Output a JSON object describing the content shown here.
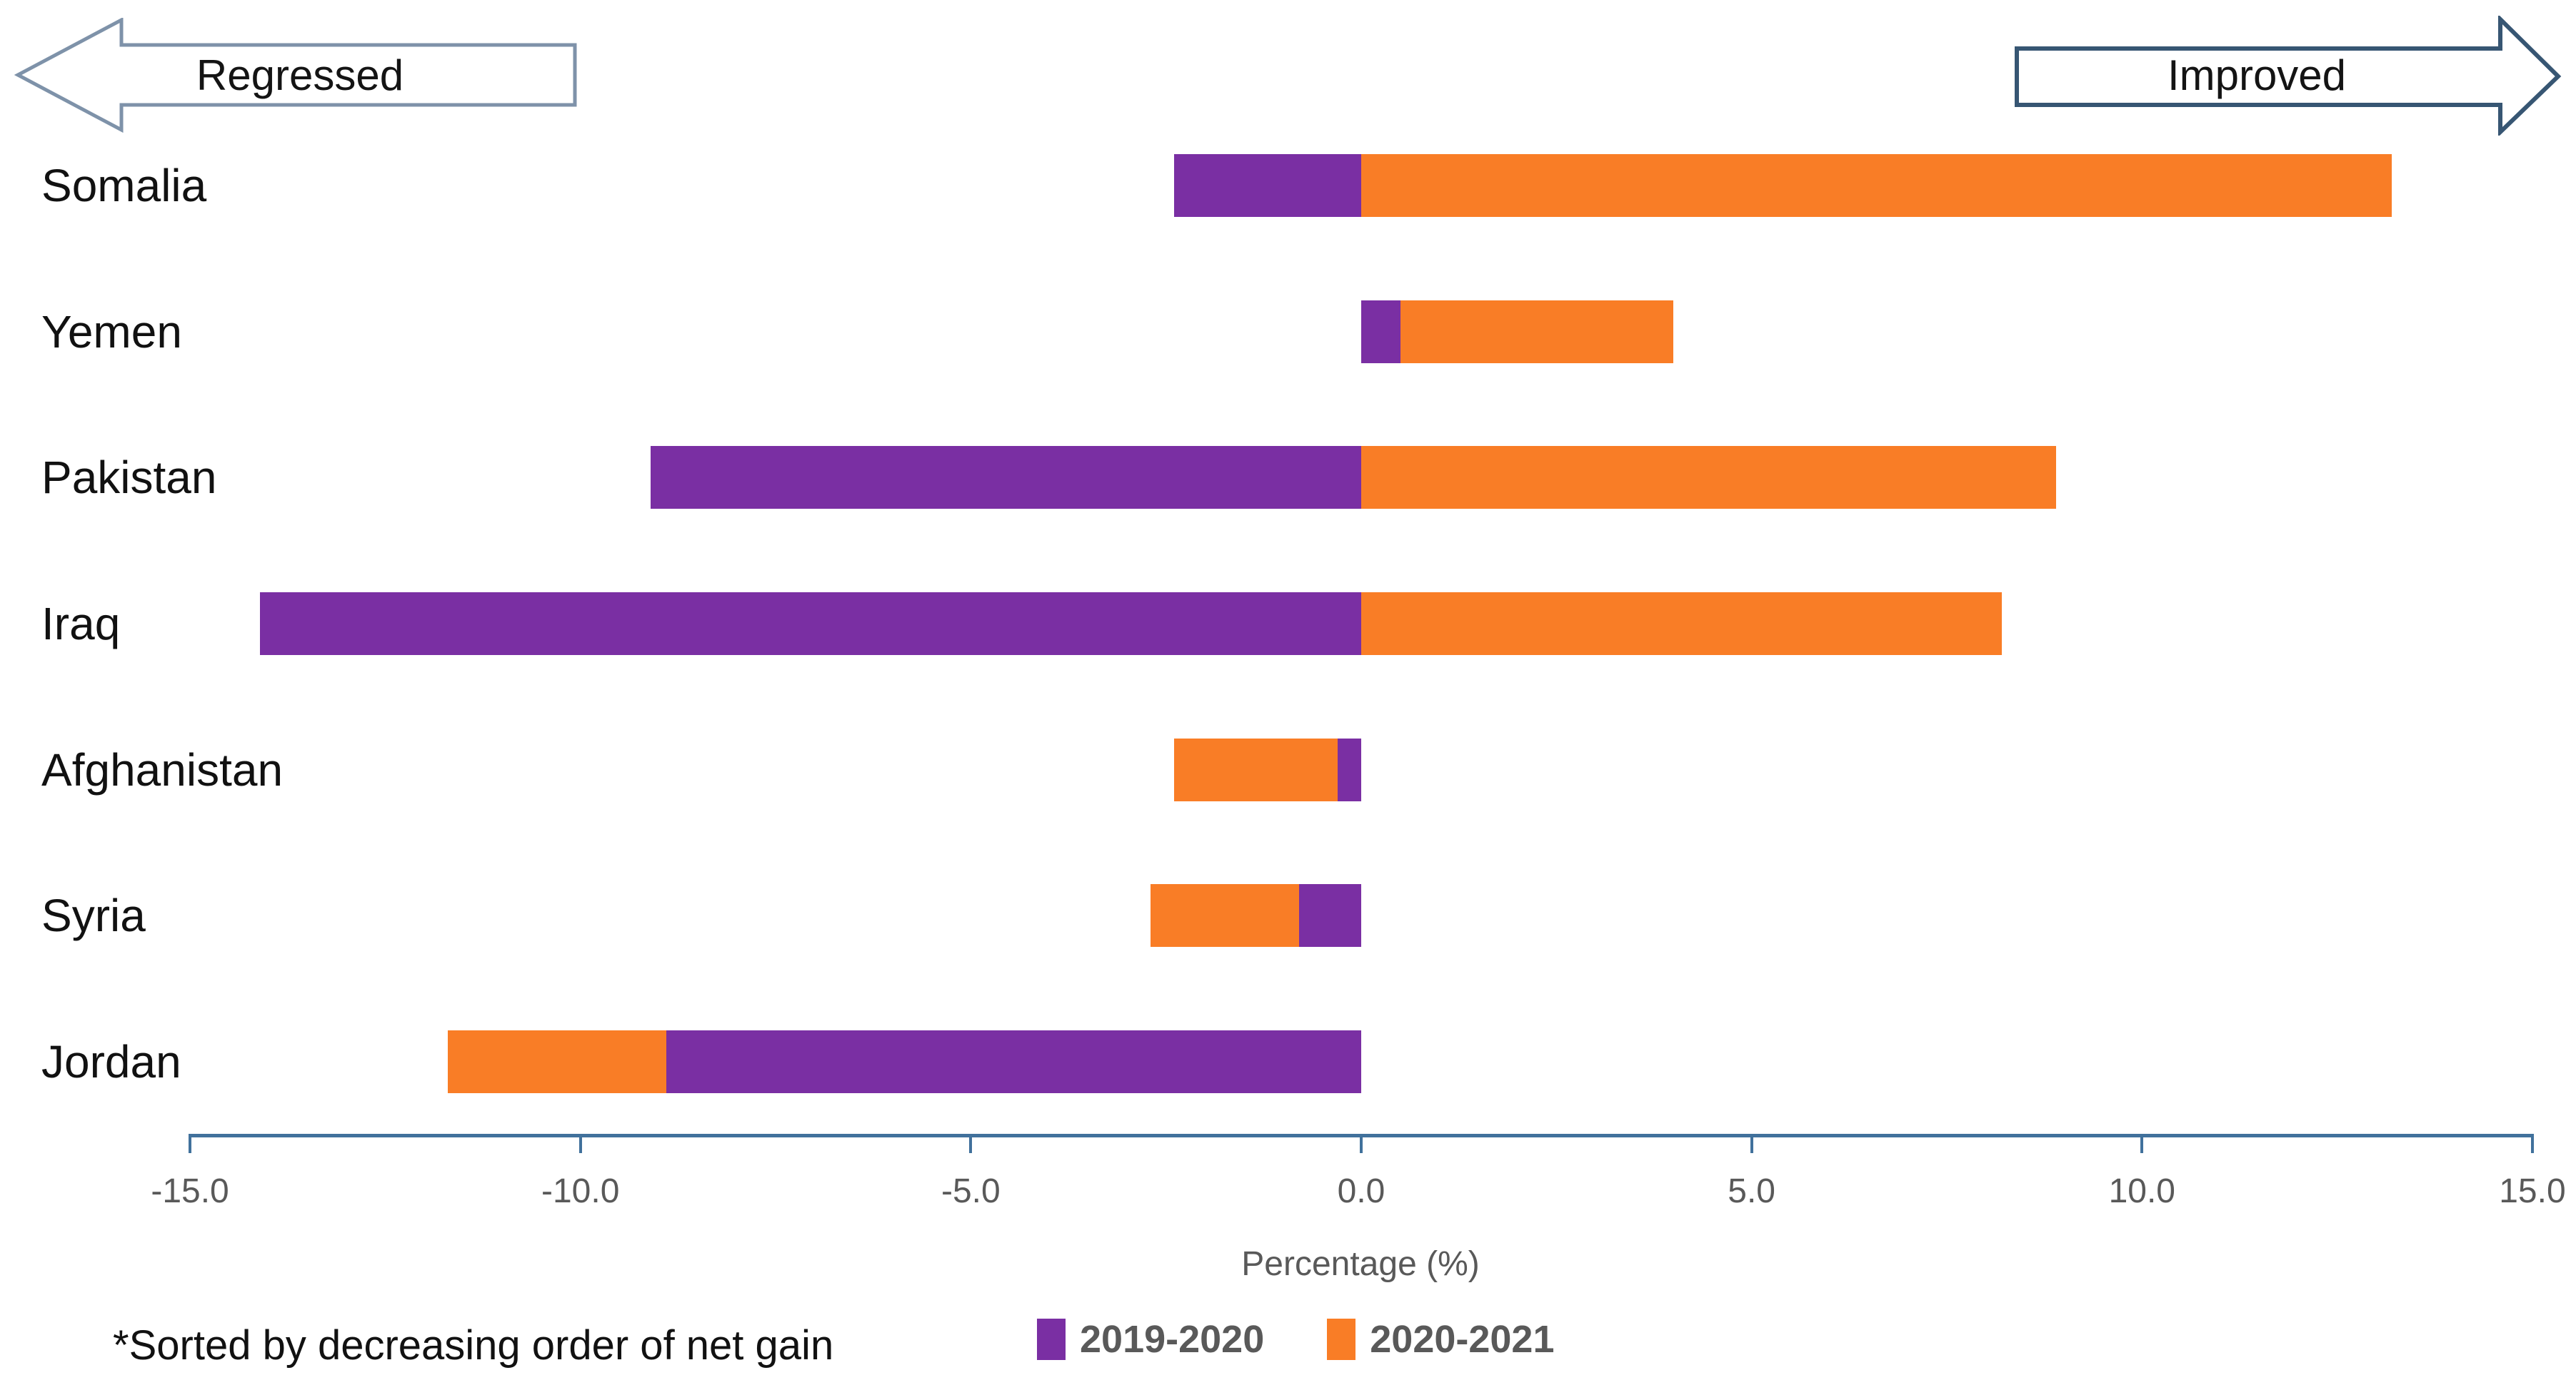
{
  "chart": {
    "direction_labels": {
      "left": "Regressed",
      "right": "Improved"
    },
    "xlabel": "Percentage (%)",
    "footnote": "*Sorted by decreasing order of net gain",
    "legend": [
      {
        "label": "2019-2020",
        "color": "#7A2FA3"
      },
      {
        "label": "2020-2021",
        "color": "#F97D26"
      }
    ]
  },
  "axis": {
    "tick_labels": [
      "-15.0",
      "-10.0",
      "-5.0",
      "0.0",
      "5.0",
      "10.0",
      "15.0"
    ]
  },
  "chart_data": {
    "type": "bar",
    "orientation": "horizontal",
    "stacked": true,
    "title": "",
    "xlabel": "Percentage (%)",
    "ylabel": "",
    "categories": [
      "Somalia",
      "Yemen",
      "Pakistan",
      "Iraq",
      "Afghanistan",
      "Syria",
      "Jordan"
    ],
    "series": [
      {
        "name": "2019-2020",
        "color": "#7A2FA3",
        "values": [
          -2.4,
          0.5,
          -9.1,
          -14.1,
          -0.3,
          -0.8,
          -8.9
        ]
      },
      {
        "name": "2020-2021",
        "color": "#F97D26",
        "values": [
          13.2,
          3.5,
          8.9,
          8.2,
          -2.1,
          -1.9,
          -2.8
        ]
      }
    ],
    "xlim": [
      -15,
      15
    ],
    "xticks": [
      -15,
      -10,
      -5,
      0,
      5,
      10,
      15
    ],
    "grid": false,
    "legend_position": "bottom",
    "annotations": [
      "Regressed (left arrow)",
      "Improved (right arrow)",
      "*Sorted by decreasing order of net gain"
    ],
    "sort_note": "*Sorted by decreasing order of net gain"
  },
  "colors": {
    "series_purple": "#7A2FA3",
    "series_orange": "#F97D26",
    "axis": "#41719C",
    "muted_text": "#595959",
    "arrow_left_border": "#7E92A9",
    "arrow_right_border": "#375673",
    "background": "#FFFFFF"
  }
}
